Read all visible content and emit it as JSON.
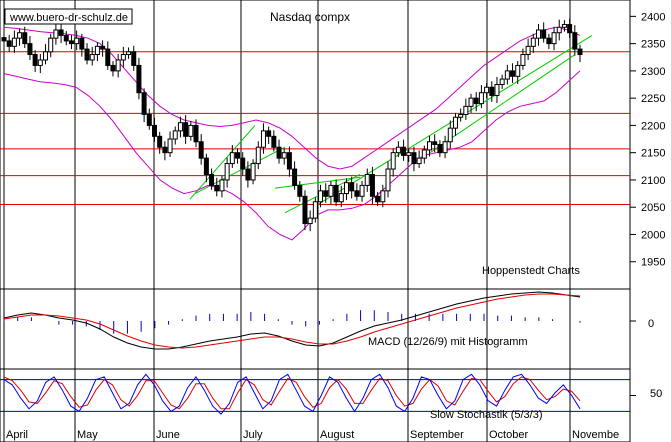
{
  "chart_data": {
    "type": "candlestick",
    "watermark": "www.buero-dr-schulz.de",
    "title": "Nasdaq compx",
    "credit": "Hoppenstedt Charts",
    "months": [
      "April",
      "May",
      "June",
      "July",
      "August",
      "September",
      "October",
      "Novembe"
    ],
    "price_axis": {
      "ticks": [
        2400,
        2350,
        2300,
        2250,
        2200,
        2150,
        2100,
        2050,
        2000,
        1950
      ],
      "ylim": [
        1900,
        2430
      ]
    },
    "horizontal_levels": [
      2335,
      2222,
      2157,
      2108,
      2055
    ],
    "closes": [
      2355,
      2345,
      2360,
      2370,
      2350,
      2330,
      2310,
      2320,
      2335,
      2360,
      2375,
      2365,
      2355,
      2350,
      2360,
      2340,
      2320,
      2330,
      2345,
      2340,
      2310,
      2300,
      2320,
      2330,
      2335,
      2310,
      2260,
      2220,
      2200,
      2180,
      2160,
      2150,
      2175,
      2190,
      2205,
      2180,
      2200,
      2170,
      2140,
      2110,
      2090,
      2080,
      2100,
      2130,
      2150,
      2140,
      2120,
      2100,
      2130,
      2160,
      2190,
      2180,
      2160,
      2140,
      2150,
      2120,
      2090,
      2070,
      2020,
      2030,
      2060,
      2080,
      2070,
      2090,
      2060,
      2075,
      2095,
      2080,
      2070,
      2090,
      2110,
      2070,
      2060,
      2080,
      2120,
      2150,
      2160,
      2145,
      2150,
      2130,
      2140,
      2155,
      2170,
      2165,
      2150,
      2170,
      2195,
      2215,
      2220,
      2235,
      2250,
      2240,
      2260,
      2270,
      2255,
      2275,
      2285,
      2300,
      2290,
      2310,
      2330,
      2345,
      2360,
      2375,
      2360,
      2350,
      2370,
      2380,
      2385,
      2370,
      2340,
      2330
    ],
    "bollinger": {
      "upper": [
        2380,
        2378,
        2375,
        2372,
        2370,
        2368,
        2365,
        2360,
        2350,
        2330,
        2305,
        2280,
        2255,
        2235,
        2220,
        2210,
        2205,
        2200,
        2198,
        2200,
        2205,
        2210,
        2205,
        2195,
        2180,
        2160,
        2140,
        2125,
        2120,
        2125,
        2140,
        2155,
        2170,
        2185,
        2200,
        2215,
        2230,
        2250,
        2270,
        2290,
        2310,
        2325,
        2340,
        2355,
        2365,
        2375,
        2380,
        2375,
        2365
      ],
      "lower": [
        2295,
        2290,
        2285,
        2280,
        2278,
        2275,
        2270,
        2255,
        2235,
        2210,
        2180,
        2150,
        2125,
        2100,
        2085,
        2075,
        2080,
        2090,
        2085,
        2075,
        2060,
        2040,
        2015,
        2000,
        1990,
        2010,
        2035,
        2045,
        2045,
        2048,
        2055,
        2070,
        2090,
        2110,
        2130,
        2145,
        2150,
        2155,
        2160,
        2170,
        2190,
        2210,
        2225,
        2235,
        2240,
        2245,
        2260,
        2280,
        2300
      ]
    },
    "macd": {
      "label": "MACD (12/26/9) mit Histogramm",
      "axis_tick": "0",
      "macd_line": [
        0.3,
        0.6,
        0.8,
        0.6,
        0.3,
        0.1,
        -0.2,
        -0.8,
        -1.6,
        -2.2,
        -2.6,
        -2.8,
        -2.8,
        -2.6,
        -2.3,
        -2.0,
        -1.8,
        -1.6,
        -1.3,
        -1.2,
        -1.5,
        -2.0,
        -2.4,
        -2.5,
        -2.2,
        -1.6,
        -1.0,
        -0.5,
        -0.2,
        0.1,
        0.5,
        0.9,
        1.3,
        1.7,
        2.0,
        2.3,
        2.5,
        2.7,
        2.8,
        2.9,
        2.8,
        2.6,
        2.4
      ],
      "signal_line": [
        0.2,
        0.4,
        0.6,
        0.6,
        0.5,
        0.3,
        0.1,
        -0.3,
        -0.9,
        -1.5,
        -2.0,
        -2.4,
        -2.6,
        -2.7,
        -2.6,
        -2.4,
        -2.2,
        -2.0,
        -1.8,
        -1.6,
        -1.6,
        -1.8,
        -2.1,
        -2.3,
        -2.3,
        -2.0,
        -1.6,
        -1.1,
        -0.7,
        -0.3,
        0.1,
        0.5,
        0.9,
        1.3,
        1.6,
        1.9,
        2.2,
        2.4,
        2.6,
        2.7,
        2.7,
        2.6,
        2.5
      ],
      "ylim": [
        -4,
        4
      ]
    },
    "stochastic": {
      "label": "Slow Stochastik (5/3/3)",
      "axis_tick": "50",
      "k_line": [
        80,
        70,
        45,
        25,
        40,
        75,
        85,
        60,
        30,
        20,
        45,
        80,
        85,
        55,
        25,
        35,
        70,
        90,
        70,
        40,
        20,
        30,
        65,
        85,
        60,
        30,
        15,
        35,
        75,
        85,
        55,
        25,
        40,
        80,
        90,
        60,
        30,
        20,
        50,
        85,
        75,
        45,
        20,
        45,
        80,
        90,
        65,
        30,
        20,
        45,
        85,
        80,
        50,
        25,
        40,
        80,
        90,
        70,
        40,
        30,
        60,
        85,
        90,
        70,
        45,
        35,
        55,
        70,
        50,
        25
      ],
      "d_line": [
        85,
        78,
        60,
        38,
        35,
        55,
        78,
        72,
        48,
        28,
        32,
        60,
        80,
        70,
        42,
        30,
        50,
        78,
        78,
        55,
        32,
        25,
        45,
        72,
        72,
        45,
        25,
        25,
        55,
        80,
        70,
        42,
        32,
        58,
        82,
        75,
        48,
        28,
        35,
        65,
        80,
        62,
        35,
        35,
        60,
        82,
        78,
        50,
        30,
        35,
        62,
        80,
        68,
        40,
        32,
        58,
        82,
        80,
        58,
        38,
        48,
        72,
        85,
        80,
        60,
        42,
        48,
        62,
        58,
        40
      ],
      "upper_band": 80,
      "lower_band": 20,
      "ylim": [
        0,
        100
      ]
    },
    "colors": {
      "price": "#000000",
      "bollinger": "#cc00cc",
      "levels": "#e00000",
      "trendlines": "#00cc00",
      "macd_histogram": "#0000cc",
      "macd_signal": "#e00000",
      "stoch_k": "#0000ff",
      "stoch_d": "#e00000",
      "stoch_bands": "#0000cc"
    }
  }
}
